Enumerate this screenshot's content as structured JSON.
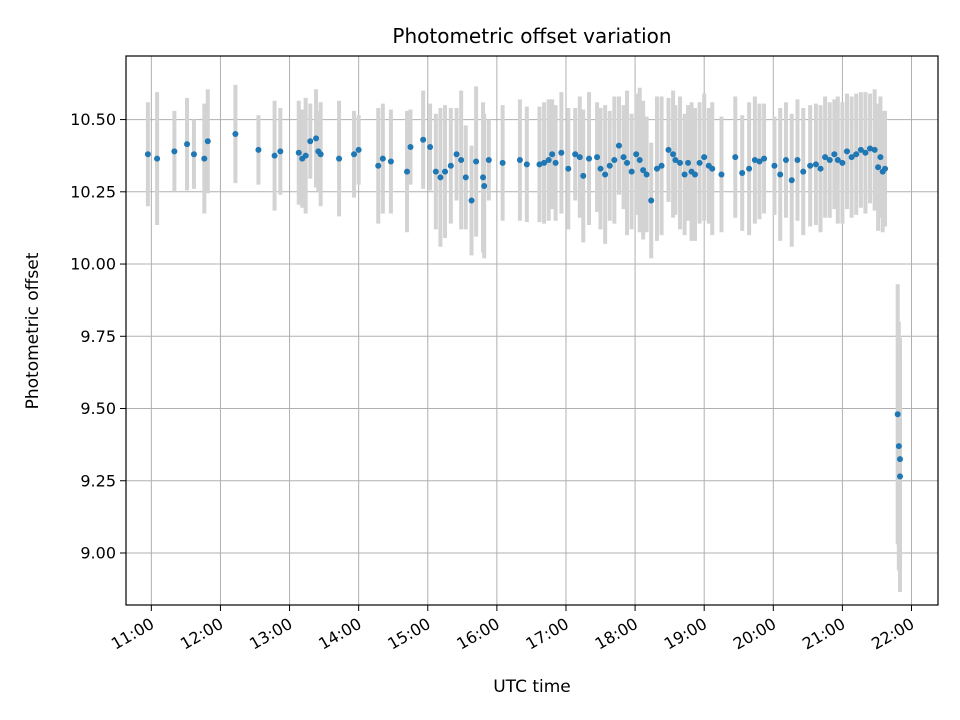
{
  "chart_data": {
    "type": "scatter",
    "title": "Photometric offset variation",
    "xlabel": "UTC time",
    "ylabel": "Photometric offset",
    "x_ticks": [
      "11:00",
      "12:00",
      "13:00",
      "14:00",
      "15:00",
      "16:00",
      "17:00",
      "18:00",
      "19:00",
      "20:00",
      "21:00",
      "22:00"
    ],
    "y_ticks": [
      "9.00",
      "9.25",
      "9.50",
      "9.75",
      "10.00",
      "10.25",
      "10.50"
    ],
    "xlim": [
      "10:38",
      "22:23"
    ],
    "ylim": [
      8.82,
      10.72
    ],
    "grid": true,
    "legend": "none",
    "colors": {
      "point": "#1f77b4",
      "errorbar": "#d3d3d3",
      "grid": "#b0b0b0"
    },
    "series": [
      {
        "marker": "circle",
        "error_style": "vertical-bar",
        "points": [
          {
            "x": "10:57",
            "y": 10.38,
            "err": 0.18
          },
          {
            "x": "11:05",
            "y": 10.365,
            "err": 0.23
          },
          {
            "x": "11:20",
            "y": 10.39,
            "err": 0.14
          },
          {
            "x": "11:31",
            "y": 10.415,
            "err": 0.16
          },
          {
            "x": "11:37",
            "y": 10.38,
            "err": 0.12
          },
          {
            "x": "11:46",
            "y": 10.365,
            "err": 0.19
          },
          {
            "x": "11:49",
            "y": 10.425,
            "err": 0.18
          },
          {
            "x": "12:13",
            "y": 10.45,
            "err": 0.17
          },
          {
            "x": "12:33",
            "y": 10.395,
            "err": 0.12
          },
          {
            "x": "12:47",
            "y": 10.375,
            "err": 0.19
          },
          {
            "x": "12:52",
            "y": 10.39,
            "err": 0.15
          },
          {
            "x": "13:08",
            "y": 10.385,
            "err": 0.18
          },
          {
            "x": "13:11",
            "y": 10.365,
            "err": 0.17
          },
          {
            "x": "13:14",
            "y": 10.375,
            "err": 0.2
          },
          {
            "x": "13:18",
            "y": 10.425,
            "err": 0.13
          },
          {
            "x": "13:23",
            "y": 10.435,
            "err": 0.17
          },
          {
            "x": "13:25",
            "y": 10.39,
            "err": 0.14
          },
          {
            "x": "13:27",
            "y": 10.38,
            "err": 0.18
          },
          {
            "x": "13:43",
            "y": 10.365,
            "err": 0.2
          },
          {
            "x": "13:56",
            "y": 10.38,
            "err": 0.15
          },
          {
            "x": "14:00",
            "y": 10.395,
            "err": 0.12
          },
          {
            "x": "14:17",
            "y": 10.34,
            "err": 0.2
          },
          {
            "x": "14:21",
            "y": 10.365,
            "err": 0.19
          },
          {
            "x": "14:28",
            "y": 10.355,
            "err": 0.18
          },
          {
            "x": "14:42",
            "y": 10.32,
            "err": 0.21
          },
          {
            "x": "14:45",
            "y": 10.405,
            "err": 0.13
          },
          {
            "x": "14:56",
            "y": 10.43,
            "err": 0.17
          },
          {
            "x": "15:02",
            "y": 10.405,
            "err": 0.15
          },
          {
            "x": "15:07",
            "y": 10.32,
            "err": 0.2
          },
          {
            "x": "15:11",
            "y": 10.3,
            "err": 0.24
          },
          {
            "x": "15:15",
            "y": 10.32,
            "err": 0.23
          },
          {
            "x": "15:20",
            "y": 10.34,
            "err": 0.2
          },
          {
            "x": "15:25",
            "y": 10.38,
            "err": 0.16
          },
          {
            "x": "15:29",
            "y": 10.36,
            "err": 0.24
          },
          {
            "x": "15:33",
            "y": 10.3,
            "err": 0.18
          },
          {
            "x": "15:38",
            "y": 10.22,
            "err": 0.19
          },
          {
            "x": "15:42",
            "y": 10.355,
            "err": 0.26
          },
          {
            "x": "15:48",
            "y": 10.3,
            "err": 0.26
          },
          {
            "x": "15:49",
            "y": 10.27,
            "err": 0.25
          },
          {
            "x": "15:53",
            "y": 10.36,
            "err": 0.14
          },
          {
            "x": "16:05",
            "y": 10.35,
            "err": 0.2
          },
          {
            "x": "16:20",
            "y": 10.36,
            "err": 0.21
          },
          {
            "x": "16:26",
            "y": 10.345,
            "err": 0.2
          },
          {
            "x": "16:37",
            "y": 10.345,
            "err": 0.2
          },
          {
            "x": "16:41",
            "y": 10.35,
            "err": 0.21
          },
          {
            "x": "16:45",
            "y": 10.36,
            "err": 0.21
          },
          {
            "x": "16:48",
            "y": 10.38,
            "err": 0.19
          },
          {
            "x": "16:51",
            "y": 10.35,
            "err": 0.2
          },
          {
            "x": "16:56",
            "y": 10.385,
            "err": 0.21
          },
          {
            "x": "17:02",
            "y": 10.33,
            "err": 0.21
          },
          {
            "x": "17:08",
            "y": 10.38,
            "err": 0.16
          },
          {
            "x": "17:12",
            "y": 10.37,
            "err": 0.21
          },
          {
            "x": "17:15",
            "y": 10.305,
            "err": 0.23
          },
          {
            "x": "17:20",
            "y": 10.365,
            "err": 0.23
          },
          {
            "x": "17:27",
            "y": 10.37,
            "err": 0.19
          },
          {
            "x": "17:30",
            "y": 10.33,
            "err": 0.21
          },
          {
            "x": "17:34",
            "y": 10.31,
            "err": 0.24
          },
          {
            "x": "17:38",
            "y": 10.34,
            "err": 0.19
          },
          {
            "x": "17:42",
            "y": 10.36,
            "err": 0.22
          },
          {
            "x": "17:46",
            "y": 10.41,
            "err": 0.17
          },
          {
            "x": "17:50",
            "y": 10.37,
            "err": 0.18
          },
          {
            "x": "17:53",
            "y": 10.35,
            "err": 0.25
          },
          {
            "x": "17:57",
            "y": 10.32,
            "err": 0.2
          },
          {
            "x": "18:01",
            "y": 10.38,
            "err": 0.21
          },
          {
            "x": "18:04",
            "y": 10.36,
            "err": 0.25
          },
          {
            "x": "18:07",
            "y": 10.325,
            "err": 0.24
          },
          {
            "x": "18:10",
            "y": 10.31,
            "err": 0.2
          },
          {
            "x": "18:14",
            "y": 10.22,
            "err": 0.2
          },
          {
            "x": "18:19",
            "y": 10.33,
            "err": 0.25
          },
          {
            "x": "18:23",
            "y": 10.34,
            "err": 0.24
          },
          {
            "x": "18:29",
            "y": 10.395,
            "err": 0.18
          },
          {
            "x": "18:33",
            "y": 10.38,
            "err": 0.22
          },
          {
            "x": "18:35",
            "y": 10.36,
            "err": 0.19
          },
          {
            "x": "18:39",
            "y": 10.35,
            "err": 0.23
          },
          {
            "x": "18:43",
            "y": 10.31,
            "err": 0.21
          },
          {
            "x": "18:46",
            "y": 10.35,
            "err": 0.2
          },
          {
            "x": "18:49",
            "y": 10.32,
            "err": 0.24
          },
          {
            "x": "18:52",
            "y": 10.31,
            "err": 0.23
          },
          {
            "x": "18:56",
            "y": 10.35,
            "err": 0.21
          },
          {
            "x": "19:00",
            "y": 10.37,
            "err": 0.22
          },
          {
            "x": "19:04",
            "y": 10.34,
            "err": 0.2
          },
          {
            "x": "19:07",
            "y": 10.33,
            "err": 0.23
          },
          {
            "x": "19:15",
            "y": 10.31,
            "err": 0.2
          },
          {
            "x": "19:27",
            "y": 10.37,
            "err": 0.21
          },
          {
            "x": "19:33",
            "y": 10.315,
            "err": 0.2
          },
          {
            "x": "19:39",
            "y": 10.33,
            "err": 0.23
          },
          {
            "x": "19:44",
            "y": 10.36,
            "err": 0.22
          },
          {
            "x": "19:48",
            "y": 10.355,
            "err": 0.2
          },
          {
            "x": "19:52",
            "y": 10.365,
            "err": 0.19
          },
          {
            "x": "20:01",
            "y": 10.34,
            "err": 0.17
          },
          {
            "x": "20:06",
            "y": 10.31,
            "err": 0.23
          },
          {
            "x": "20:11",
            "y": 10.36,
            "err": 0.2
          },
          {
            "x": "20:16",
            "y": 10.29,
            "err": 0.23
          },
          {
            "x": "20:21",
            "y": 10.36,
            "err": 0.21
          },
          {
            "x": "20:26",
            "y": 10.32,
            "err": 0.22
          },
          {
            "x": "20:32",
            "y": 10.34,
            "err": 0.21
          },
          {
            "x": "20:37",
            "y": 10.345,
            "err": 0.21
          },
          {
            "x": "20:41",
            "y": 10.33,
            "err": 0.22
          },
          {
            "x": "20:45",
            "y": 10.37,
            "err": 0.21
          },
          {
            "x": "20:49",
            "y": 10.36,
            "err": 0.2
          },
          {
            "x": "20:53",
            "y": 10.38,
            "err": 0.19
          },
          {
            "x": "20:56",
            "y": 10.36,
            "err": 0.22
          },
          {
            "x": "21:00",
            "y": 10.35,
            "err": 0.21
          },
          {
            "x": "21:04",
            "y": 10.39,
            "err": 0.2
          },
          {
            "x": "21:08",
            "y": 10.37,
            "err": 0.21
          },
          {
            "x": "21:12",
            "y": 10.38,
            "err": 0.21
          },
          {
            "x": "21:16",
            "y": 10.395,
            "err": 0.2
          },
          {
            "x": "21:20",
            "y": 10.385,
            "err": 0.21
          },
          {
            "x": "21:24",
            "y": 10.4,
            "err": 0.19
          },
          {
            "x": "21:28",
            "y": 10.395,
            "err": 0.21
          },
          {
            "x": "21:31",
            "y": 10.335,
            "err": 0.22
          },
          {
            "x": "21:33",
            "y": 10.37,
            "err": 0.21
          },
          {
            "x": "21:35",
            "y": 10.32,
            "err": 0.21
          },
          {
            "x": "21:37",
            "y": 10.33,
            "err": 0.2
          },
          {
            "x": "21:48",
            "y": 9.48,
            "err": 0.45
          },
          {
            "x": "21:49",
            "y": 9.37,
            "err": 0.43
          },
          {
            "x": "21:50",
            "y": 9.325,
            "err": 0.42
          },
          {
            "x": "21:50",
            "y": 9.265,
            "err": 0.4
          }
        ]
      }
    ]
  }
}
